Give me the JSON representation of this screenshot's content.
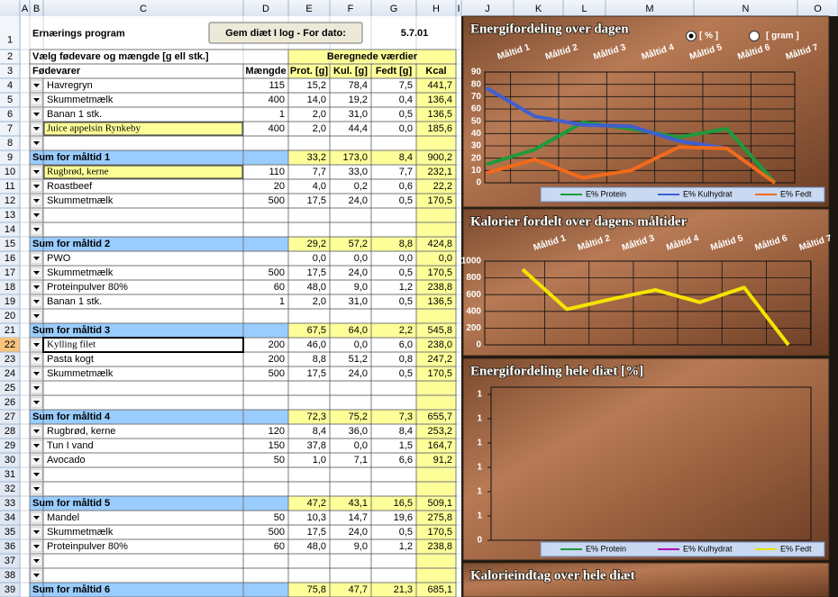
{
  "sheet": {
    "column_headers": [
      "A",
      "B",
      "C",
      "D",
      "E",
      "F",
      "G",
      "H",
      "I",
      "J",
      "K",
      "L",
      "M",
      "N",
      "O"
    ],
    "row_numbers": [
      1,
      2,
      3,
      4,
      5,
      6,
      7,
      8,
      9,
      10,
      11,
      12,
      13,
      14,
      15,
      16,
      17,
      18,
      19,
      20,
      21,
      22,
      23,
      24,
      25,
      26,
      27,
      28,
      29,
      30,
      31,
      32,
      33,
      34,
      35,
      36,
      37,
      38,
      39
    ],
    "title": "Ernærings program",
    "button": "Gem diæt I log - For dato:",
    "date": "5.7.01",
    "section_left": "Vælg fødevare og mængde [g ell stk.]",
    "section_right": "Beregnede værdier",
    "headers": [
      "Fødevarer",
      "Mængde",
      "Prot. [g]",
      "Kul. [g]",
      "Fedt [g]",
      "Kcal"
    ],
    "rows": [
      {
        "food": "Havregryn",
        "qty": 115,
        "values": [
          "15,2",
          "78,4",
          "7,5",
          "441,7"
        ]
      },
      {
        "food": "Skummetmælk",
        "qty": 400,
        "values": [
          "14,0",
          "19,2",
          "0,4",
          "136,4"
        ]
      },
      {
        "food": "Banan 1 stk.",
        "qty": 1,
        "values": [
          "2,0",
          "31,0",
          "0,5",
          "136,5"
        ]
      },
      {
        "food": "Juice appelsin Rynkeby",
        "qty": 400,
        "values": [
          "2,0",
          "44,4",
          "0,0",
          "185,6"
        ],
        "highlight": true
      },
      {},
      {
        "label": "Sum for måltid 1",
        "values": [
          "33,2",
          "173,0",
          "8,4",
          "900,2"
        ]
      },
      {
        "food": "Rugbrød, kerne",
        "qty": 110,
        "values": [
          "7,7",
          "33,0",
          "7,7",
          "232,1"
        ],
        "highlight": true
      },
      {
        "food": "Roastbeef",
        "qty": 20,
        "values": [
          "4,0",
          "0,2",
          "0,6",
          "22,2"
        ]
      },
      {
        "food": "Skummetmælk",
        "qty": 500,
        "values": [
          "17,5",
          "24,0",
          "0,5",
          "170,5"
        ]
      },
      {},
      {},
      {
        "label": "Sum for måltid 2",
        "values": [
          "29,2",
          "57,2",
          "8,8",
          "424,8"
        ]
      },
      {
        "food": "PWO",
        "values": [
          "0,0",
          "0,0",
          "0,0",
          "0,0"
        ]
      },
      {
        "food": "Skummetmælk",
        "qty": 500,
        "values": [
          "17,5",
          "24,0",
          "0,5",
          "170,5"
        ]
      },
      {
        "food": "Proteinpulver 80%",
        "qty": 60,
        "values": [
          "48,0",
          "9,0",
          "1,2",
          "238,8"
        ]
      },
      {
        "food": "Banan 1 stk.",
        "qty": 1,
        "values": [
          "2,0",
          "31,0",
          "0,5",
          "136,5"
        ]
      },
      {},
      {
        "label": "Sum for måltid 3",
        "values": [
          "67,5",
          "64,0",
          "2,2",
          "545,8"
        ]
      },
      {
        "food": "Kylling filet",
        "qty": 200,
        "values": [
          "46,0",
          "0,0",
          "6,0",
          "238,0"
        ],
        "selected": true
      },
      {
        "food": "Pasta kogt",
        "qty": 200,
        "values": [
          "8,8",
          "51,2",
          "0,8",
          "247,2"
        ]
      },
      {
        "food": "Skummetmælk",
        "qty": 500,
        "values": [
          "17,5",
          "24,0",
          "0,5",
          "170,5"
        ]
      },
      {},
      {},
      {
        "label": "Sum for måltid 4",
        "values": [
          "72,3",
          "75,2",
          "7,3",
          "655,7"
        ]
      },
      {
        "food": "Rugbrød, kerne",
        "qty": 120,
        "values": [
          "8,4",
          "36,0",
          "8,4",
          "253,2"
        ]
      },
      {
        "food": "Tun I vand",
        "qty": 150,
        "values": [
          "37,8",
          "0,0",
          "1,5",
          "164,7"
        ]
      },
      {
        "food": "Avocado",
        "qty": 50,
        "values": [
          "1,0",
          "7,1",
          "6,6",
          "91,2"
        ]
      },
      {},
      {},
      {
        "label": "Sum for måltid 5",
        "values": [
          "47,2",
          "43,1",
          "16,5",
          "509,1"
        ]
      },
      {
        "food": "Mandel",
        "qty": 50,
        "values": [
          "10,3",
          "14,7",
          "19,6",
          "275,8"
        ]
      },
      {
        "food": "Skummetmælk",
        "qty": 500,
        "values": [
          "17,5",
          "24,0",
          "0,5",
          "170,5"
        ]
      },
      {
        "food": "Proteinpulver 80%",
        "qty": 60,
        "values": [
          "48,0",
          "9,0",
          "1,2",
          "238,8"
        ]
      },
      {},
      {},
      {
        "label": "Sum for måltid 6",
        "values": [
          "75,8",
          "47,7",
          "21,3",
          "685,1"
        ]
      }
    ]
  },
  "charts": [
    {
      "type": "line",
      "title": "Energifordeling over dagen",
      "options": [
        "[ % ]",
        "[ gram ]"
      ],
      "selected_option": 0,
      "categories": [
        "Måltid 1",
        "Måltid 2",
        "Måltid 3",
        "Måltid 4",
        "Måltid 5",
        "Måltid 6",
        "Måltid 7"
      ],
      "ylim": [
        0,
        90
      ],
      "yticks": [
        0,
        10,
        20,
        30,
        40,
        50,
        60,
        70,
        80,
        90
      ],
      "series": [
        {
          "name": "E% Protein",
          "color": "#1e9a3a",
          "values": [
            15,
            27,
            49,
            44,
            37,
            44,
            0
          ]
        },
        {
          "name": "E% Kulhydrat",
          "color": "#3f5fd0",
          "values": [
            77,
            54,
            47,
            46,
            34,
            28,
            0
          ]
        },
        {
          "name": "E% Fedt",
          "color": "#f26a1b",
          "values": [
            8,
            19,
            4,
            10,
            29,
            28,
            0
          ]
        }
      ]
    },
    {
      "type": "line",
      "title": "Kalorier fordelt over dagens måltider",
      "categories": [
        "Måltid 1",
        "Måltid 2",
        "Måltid 3",
        "Måltid 4",
        "Måltid 5",
        "Måltid 6",
        "Måltid 7"
      ],
      "ylim": [
        0,
        1000
      ],
      "yticks": [
        0,
        200,
        400,
        600,
        800,
        1000
      ],
      "series": [
        {
          "color": "#f5e400",
          "values": [
            900,
            425,
            546,
            656,
            509,
            685,
            0
          ]
        }
      ]
    },
    {
      "type": "line",
      "title": "Energifordeling hele diæt [%]",
      "ytick_labels": [
        "1",
        "1",
        "1",
        "1",
        "1",
        "1",
        "0"
      ],
      "series": [
        {
          "name": "E% Protein",
          "color": "#1e9a3a"
        },
        {
          "name": "E% Kulhydrat",
          "color": "#b000c0"
        },
        {
          "name": "E% Fedt",
          "color": "#e8e000"
        }
      ]
    },
    {
      "type": "line",
      "title": "Kalorieindtag over hele diæt"
    }
  ]
}
